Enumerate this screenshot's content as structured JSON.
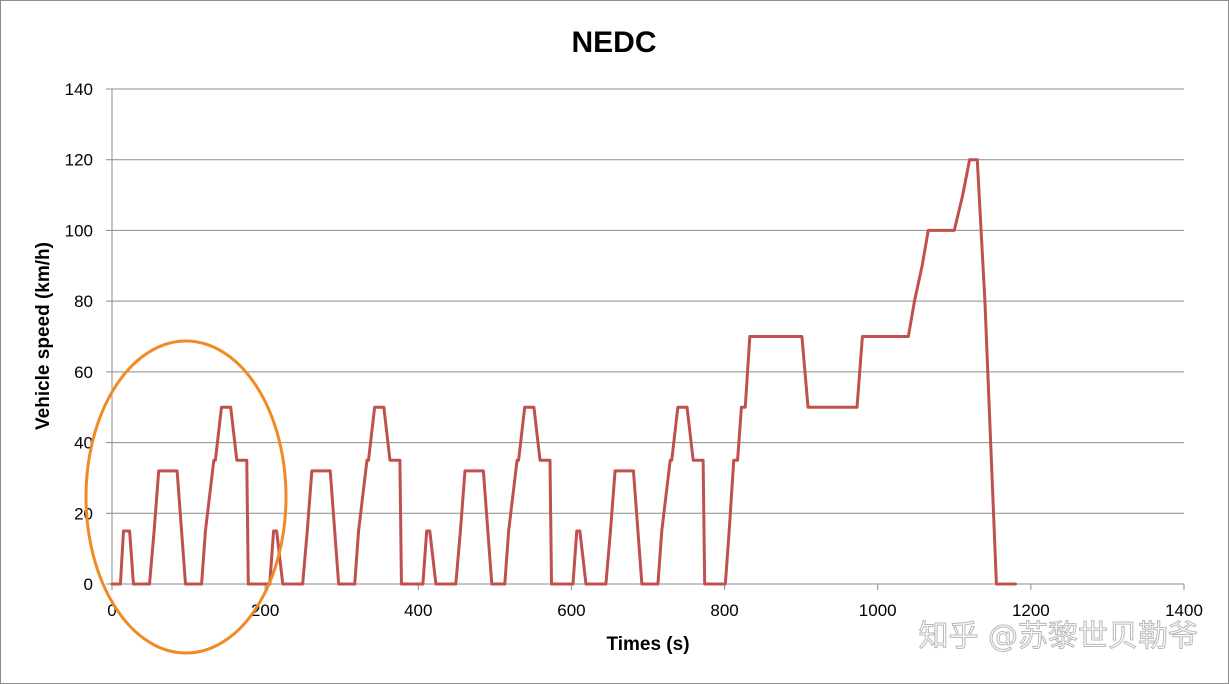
{
  "chart_data": {
    "type": "line",
    "title": "NEDC",
    "xlabel": "Times (s)",
    "ylabel": "Vehicle speed (km/h)",
    "xlim": [
      0,
      1400
    ],
    "ylim": [
      0,
      140
    ],
    "x_ticks": [
      0,
      200,
      400,
      600,
      800,
      1000,
      1200,
      1400
    ],
    "y_ticks": [
      0,
      20,
      40,
      60,
      80,
      100,
      120,
      140
    ],
    "grid": "horizontal",
    "legend": "none",
    "series": [
      {
        "color": "#c0504d",
        "x": [
          0,
          11,
          15,
          23,
          28,
          49,
          55,
          61,
          85,
          96,
          117,
          122,
          133,
          135,
          143,
          155,
          163,
          176,
          178,
          185,
          188,
          195,
          206,
          211,
          215,
          223,
          228,
          249,
          255,
          261,
          285,
          296,
          317,
          322,
          333,
          335,
          343,
          355,
          363,
          376,
          378,
          385,
          388,
          395,
          406,
          411,
          415,
          423,
          428,
          449,
          455,
          461,
          485,
          496,
          513,
          518,
          529,
          531,
          539,
          551,
          559,
          572,
          574,
          581,
          584,
          591,
          602,
          607,
          611,
          619,
          624,
          645,
          651,
          657,
          681,
          692,
          713,
          718,
          729,
          731,
          739,
          751,
          759,
          772,
          774,
          781,
          784,
          791,
          801,
          806,
          812,
          817,
          822,
          827,
          833,
          838,
          843,
          848,
          851,
          901,
          909,
          960,
          967,
          973,
          980,
          1030,
          1040,
          1048,
          1058,
          1066,
          1100,
          1111,
          1120,
          1130,
          1140,
          1155,
          1165,
          1180
        ],
        "y": [
          0,
          0,
          15,
          15,
          0,
          0,
          15,
          32,
          32,
          0,
          0,
          15,
          35,
          35,
          50,
          50,
          35,
          35,
          0,
          0,
          0,
          0,
          0,
          15,
          15,
          0,
          0,
          0,
          15,
          32,
          32,
          0,
          0,
          15,
          35,
          35,
          50,
          50,
          35,
          35,
          0,
          0,
          0,
          0,
          0,
          15,
          15,
          0,
          0,
          0,
          15,
          32,
          32,
          0,
          0,
          15,
          35,
          35,
          50,
          50,
          35,
          35,
          0,
          0,
          0,
          0,
          0,
          15,
          15,
          0,
          0,
          0,
          15,
          32,
          32,
          0,
          0,
          15,
          35,
          35,
          50,
          50,
          35,
          35,
          0,
          0,
          0,
          0,
          0,
          15,
          35,
          35,
          50,
          50,
          70,
          70,
          70,
          70,
          70,
          70,
          50,
          50,
          50,
          50,
          70,
          70,
          70,
          80,
          90,
          100,
          100,
          110,
          120,
          120,
          80,
          0,
          0,
          0
        ]
      }
    ]
  },
  "watermark": "知乎 @苏黎世贝勒爷"
}
